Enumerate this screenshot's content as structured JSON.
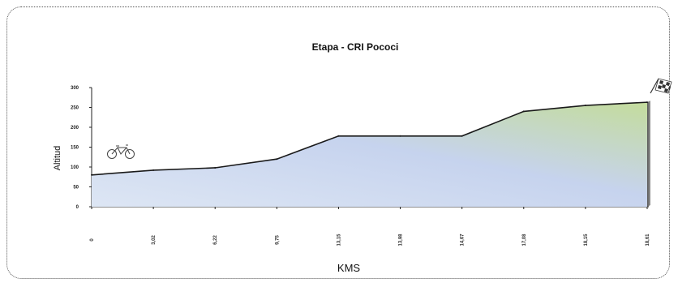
{
  "chart_data": {
    "type": "area",
    "title": "Etapa - CRI Pococi",
    "xlabel": "KMS",
    "ylabel": "Altitud",
    "ylim": [
      0,
      300
    ],
    "yticks": [
      "300",
      "250",
      "200",
      "150",
      "100",
      "50",
      "0"
    ],
    "x": [
      "0",
      "3,02",
      "6,22",
      "9,75",
      "13,15",
      "13,98",
      "14,67",
      "17,08",
      "18,15",
      "18,61"
    ],
    "values": [
      80,
      92,
      98,
      120,
      178,
      178,
      178,
      240,
      255,
      263
    ],
    "grid": false,
    "legend": "none",
    "fill_colors": {
      "bottom": "#dce7f5",
      "middle": "#b7c8e8",
      "top_right": "#bcd49a"
    },
    "icons": {
      "start": "bicycle-icon",
      "finish": "checkered-flag-icon"
    }
  }
}
